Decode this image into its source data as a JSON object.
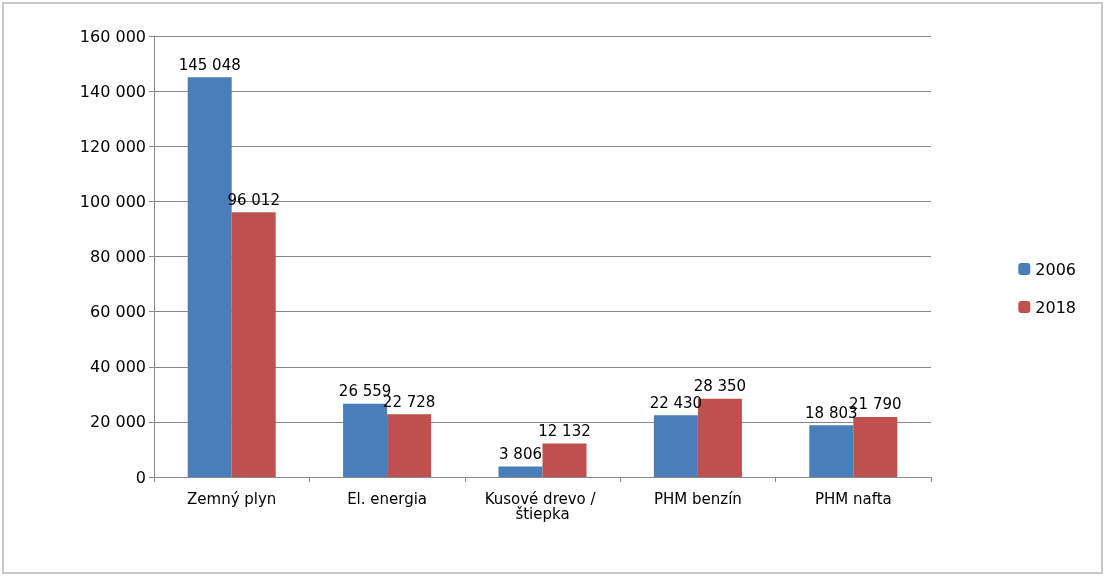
{
  "chart_data": {
    "type": "bar",
    "categories": [
      "Zemný plyn",
      "El. energia",
      "Kusové drevo / štiepka",
      "PHM benzín",
      "PHM nafta"
    ],
    "series": [
      {
        "name": "2006",
        "color": "#4a7ebb",
        "values": [
          145048,
          26559,
          3806,
          22430,
          18803
        ],
        "value_labels": [
          "145 048",
          "26 559",
          "3 806",
          "22 430",
          "18 803"
        ]
      },
      {
        "name": "2018",
        "color": "#c0504d",
        "values": [
          96012,
          22728,
          12132,
          28350,
          21790
        ],
        "value_labels": [
          "96 012",
          "22 728",
          "12 132",
          "28 350",
          "21 790"
        ]
      }
    ],
    "ylim": [
      0,
      160000
    ],
    "yticks": [
      {
        "value": 0,
        "label": "0"
      },
      {
        "value": 20000,
        "label": "20 000"
      },
      {
        "value": 40000,
        "label": "40 000"
      },
      {
        "value": 60000,
        "label": "60 000"
      },
      {
        "value": 80000,
        "label": "80 000"
      },
      {
        "value": 100000,
        "label": "100 000"
      },
      {
        "value": 120000,
        "label": "120 000"
      },
      {
        "value": 140000,
        "label": "140 000"
      },
      {
        "value": 160000,
        "label": "160 000"
      }
    ],
    "grid": "y",
    "legend": "right"
  }
}
